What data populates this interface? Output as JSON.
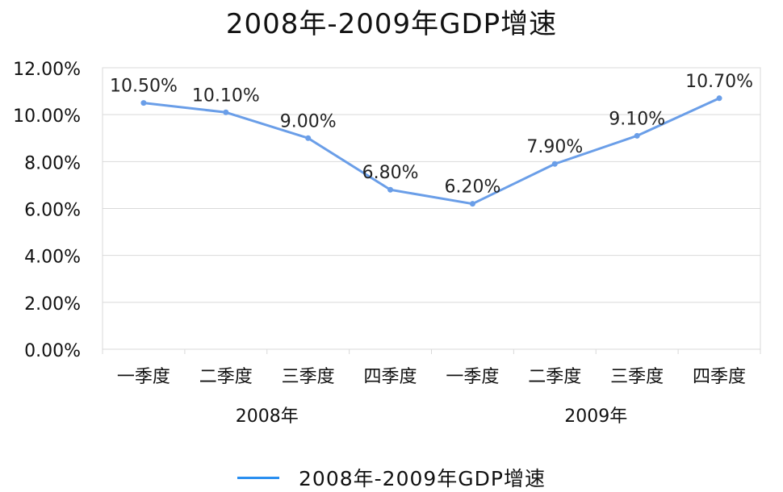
{
  "chart_data": {
    "type": "line",
    "title": "2008年-2009年GDP增速",
    "categories": [
      "一季度",
      "二季度",
      "三季度",
      "四季度",
      "一季度",
      "二季度",
      "三季度",
      "四季度"
    ],
    "groups": [
      {
        "label": "2008年",
        "span": [
          0,
          3
        ]
      },
      {
        "label": "2009年",
        "span": [
          4,
          7
        ]
      }
    ],
    "series": [
      {
        "name": "2008年-2009年GDP增速",
        "values": [
          10.5,
          10.1,
          9.0,
          6.8,
          6.2,
          7.9,
          9.1,
          10.7
        ],
        "labels": [
          "10.50%",
          "10.10%",
          "9.00%",
          "6.80%",
          "6.20%",
          "7.90%",
          "9.10%",
          "10.70%"
        ],
        "color": "#6a9ee8"
      }
    ],
    "ylim": [
      0,
      12
    ],
    "yticks": [
      "0.00%",
      "2.00%",
      "4.00%",
      "6.00%",
      "8.00%",
      "10.00%",
      "12.00%"
    ],
    "grid": true,
    "legend_position": "bottom",
    "legend_color": "#2a8ff0"
  }
}
